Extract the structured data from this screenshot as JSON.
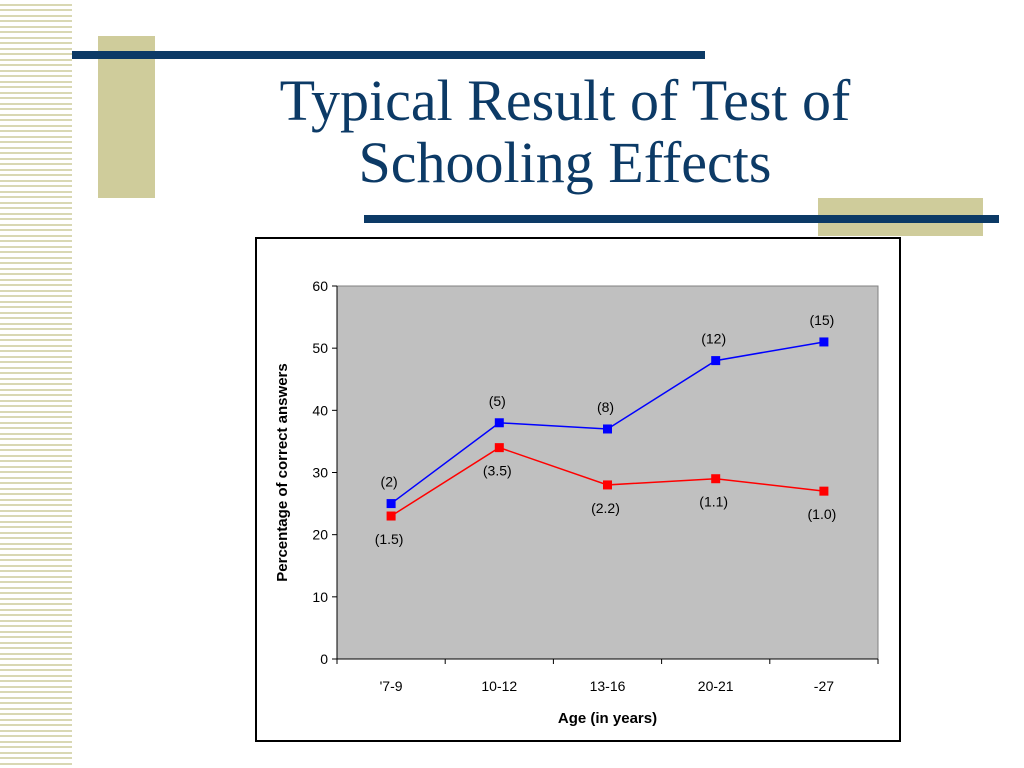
{
  "slide": {
    "title_line1": "Typical Result of Test of",
    "title_line2": "Schooling Effects"
  },
  "colors": {
    "title": "#0c3a66",
    "accent_bar": "#0c3a66",
    "accent_block": "#cfcc9b",
    "plot_background": "#c0c0c0"
  },
  "chart_data": {
    "type": "line",
    "title": "",
    "xlabel": "Age (in years)",
    "ylabel": "Percentage of correct answers",
    "categories": [
      "'7-9",
      "10-12",
      "13-16",
      "20-21",
      "-27"
    ],
    "ylim": [
      0,
      60
    ],
    "yticks": [
      0,
      10,
      20,
      30,
      40,
      50,
      60
    ],
    "grid": false,
    "legend": "none",
    "series": [
      {
        "color": "#0000ff",
        "values": [
          25,
          38,
          37,
          48,
          51
        ],
        "labels": [
          "(2)",
          "(5)",
          "(8)",
          "(12)",
          "(15)"
        ],
        "label_position": "above"
      },
      {
        "color": "#ff0000",
        "values": [
          23,
          34,
          28,
          29,
          27
        ],
        "labels": [
          "(1.5)",
          "(3.5)",
          "(2.2)",
          "(1.1)",
          "(1.0)"
        ],
        "label_position": "below"
      }
    ]
  }
}
